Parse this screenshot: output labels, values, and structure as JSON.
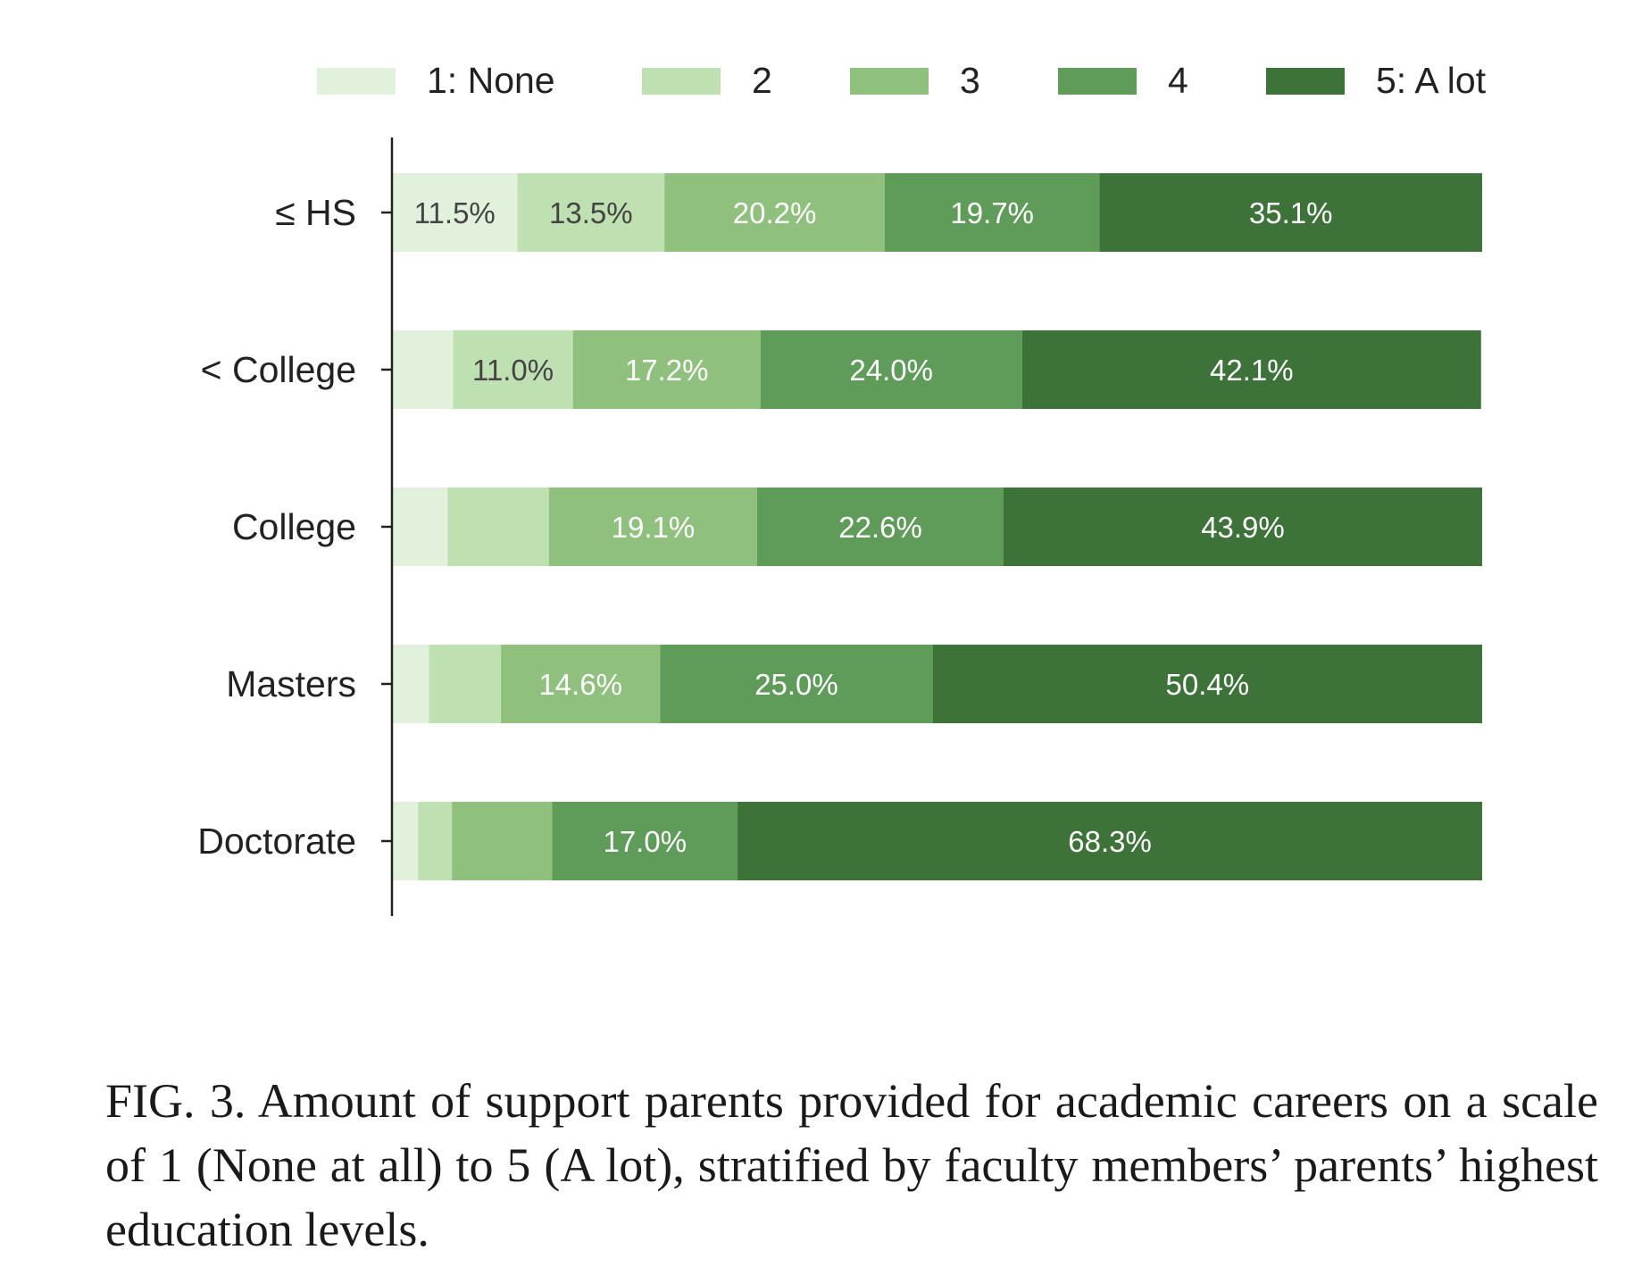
{
  "chart_data": {
    "type": "bar",
    "orientation": "horizontal",
    "stacked": true,
    "categories": [
      "≤ HS",
      "< College",
      "College",
      "Masters",
      "Doctorate"
    ],
    "series": [
      {
        "name": "1: None",
        "color": "#e2f1dc",
        "values": [
          11.5,
          5.6,
          5.1,
          3.4,
          2.4
        ]
      },
      {
        "name": "2",
        "color": "#bfe0b0",
        "values": [
          13.5,
          11.0,
          9.3,
          6.6,
          3.1
        ]
      },
      {
        "name": "3",
        "color": "#8fc07d",
        "values": [
          20.2,
          17.2,
          19.1,
          14.6,
          9.2
        ]
      },
      {
        "name": "4",
        "color": "#5f9b59",
        "values": [
          19.7,
          24.0,
          22.6,
          25.0,
          17.0
        ]
      },
      {
        "name": "5: A lot",
        "color": "#3d7239",
        "values": [
          35.1,
          42.1,
          43.9,
          50.4,
          68.3
        ]
      }
    ],
    "data_labels": [
      [
        "11.5%",
        "13.5%",
        "20.2%",
        "19.7%",
        "35.1%"
      ],
      [
        "",
        "11.0%",
        "17.2%",
        "24.0%",
        "42.1%"
      ],
      [
        "",
        "",
        "19.1%",
        "22.6%",
        "43.9%"
      ],
      [
        "",
        "",
        "14.6%",
        "25.0%",
        "50.4%"
      ],
      [
        "",
        "",
        "",
        "17.0%",
        "68.3%"
      ]
    ],
    "xlim": [
      0,
      100
    ],
    "xaxis_visible": false,
    "legend_position": "top",
    "grid": false
  },
  "caption": {
    "text": "FIG. 3. Amount of support parents provided for academic careers on a scale of 1 (None at all) to 5 (A lot), stratified by faculty members’ parents’ highest education levels."
  }
}
